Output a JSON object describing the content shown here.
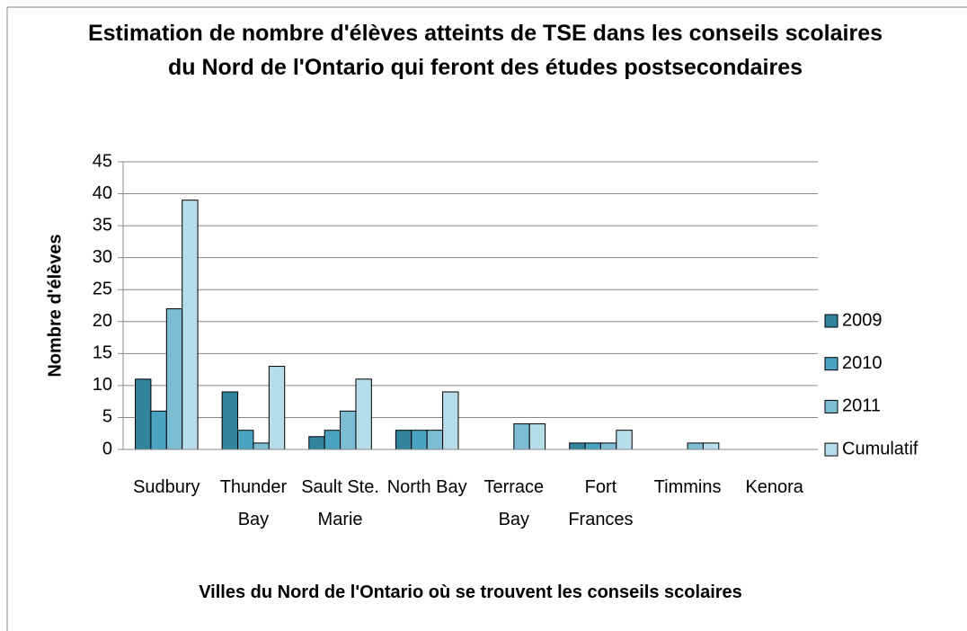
{
  "chart_data": {
    "type": "bar",
    "title": "Estimation de nombre d'élèves atteints de TSE dans les conseils scolaires du Nord de l'Ontario qui feront des études postsecondaires",
    "x_label": "Villes du Nord de l'Ontario où se trouvent les conseils scolaires",
    "y_label": "Nombre d'élèves",
    "categories": [
      "Sudbury",
      "Thunder Bay",
      "Sault Ste. Marie",
      "North Bay",
      "Terrace Bay",
      "Fort Frances",
      "Timmins",
      "Kenora"
    ],
    "series": [
      {
        "name": "2009",
        "color": "#31849b",
        "values": [
          11,
          9,
          2,
          3,
          0,
          1,
          0,
          0
        ]
      },
      {
        "name": "2010",
        "color": "#4aa3c0",
        "values": [
          6,
          3,
          3,
          3,
          0,
          1,
          0,
          0
        ]
      },
      {
        "name": "2011",
        "color": "#7dbdd3",
        "values": [
          22,
          1,
          6,
          3,
          4,
          1,
          1,
          0
        ]
      },
      {
        "name": "Cumulatif",
        "color": "#b7dde8",
        "values": [
          39,
          13,
          11,
          9,
          4,
          3,
          1,
          0
        ]
      }
    ],
    "ylim": [
      0,
      45
    ],
    "yticks": [
      0,
      5,
      10,
      15,
      20,
      25,
      30,
      35,
      40,
      45
    ],
    "grid": true,
    "legend": "right"
  }
}
